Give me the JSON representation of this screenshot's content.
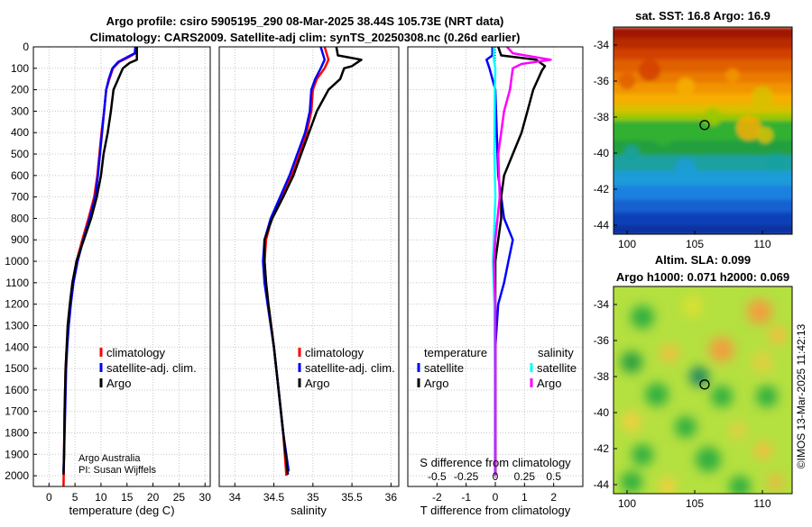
{
  "header": {
    "title_line1": "Argo profile: csiro 5905195_290 08-Mar-2025 38.44S 105.73E (NRT data)",
    "title_line2": "Climatology: CARS2009. Satellite-adj clim: synTS_20250308.nc (0.26d earlier)"
  },
  "colors": {
    "red": "#ff0000",
    "blue": "#0000ff",
    "black": "#000000",
    "cyan": "#00ffff",
    "magenta": "#ff00ff"
  },
  "chart_data": [
    {
      "type": "line",
      "id": "temperature",
      "xlabel": "temperature (deg C)",
      "ylabel": "",
      "xlim": [
        -3,
        31
      ],
      "ylim": [
        2050,
        0
      ],
      "xticks": [
        0,
        5,
        10,
        15,
        20,
        25,
        30
      ],
      "yticks": [
        0,
        100,
        200,
        300,
        400,
        500,
        600,
        700,
        800,
        900,
        1000,
        1100,
        1200,
        1300,
        1400,
        1500,
        1600,
        1700,
        1800,
        1900,
        2000
      ],
      "legend": [
        "climatology",
        "satellite-adj. clim.",
        "Argo"
      ],
      "annotation": [
        "Argo Australia",
        "PI: Susan Wijffels"
      ],
      "series": [
        {
          "name": "climatology",
          "color": "red",
          "points": [
            [
              16.8,
              0
            ],
            [
              16.6,
              30
            ],
            [
              15.2,
              50
            ],
            [
              13.5,
              70
            ],
            [
              12.3,
              100
            ],
            [
              11.6,
              150
            ],
            [
              11.0,
              200
            ],
            [
              10.6,
              300
            ],
            [
              10.1,
              400
            ],
            [
              9.7,
              500
            ],
            [
              9.3,
              600
            ],
            [
              8.7,
              700
            ],
            [
              7.6,
              800
            ],
            [
              6.4,
              900
            ],
            [
              5.3,
              1000
            ],
            [
              4.6,
              1100
            ],
            [
              4.1,
              1200
            ],
            [
              3.7,
              1300
            ],
            [
              3.4,
              1400
            ],
            [
              3.2,
              1500
            ],
            [
              3.0,
              1700
            ],
            [
              2.9,
              1900
            ],
            [
              2.8,
              2050
            ]
          ]
        },
        {
          "name": "satellite-adj. clim.",
          "color": "blue",
          "points": [
            [
              16.6,
              0
            ],
            [
              16.5,
              30
            ],
            [
              14.9,
              50
            ],
            [
              13.3,
              70
            ],
            [
              12.2,
              100
            ],
            [
              11.5,
              150
            ],
            [
              11.0,
              200
            ],
            [
              10.6,
              300
            ],
            [
              10.2,
              400
            ],
            [
              9.8,
              500
            ],
            [
              9.4,
              600
            ],
            [
              8.9,
              700
            ],
            [
              7.8,
              800
            ],
            [
              6.6,
              900
            ],
            [
              5.5,
              1000
            ],
            [
              4.7,
              1100
            ],
            [
              4.2,
              1200
            ],
            [
              3.8,
              1300
            ],
            [
              3.5,
              1400
            ],
            [
              3.3,
              1500
            ],
            [
              3.1,
              1700
            ],
            [
              2.9,
              1900
            ],
            [
              2.8,
              1980
            ]
          ]
        },
        {
          "name": "Argo",
          "color": "black",
          "points": [
            [
              16.9,
              0
            ],
            [
              16.9,
              60
            ],
            [
              15.5,
              75
            ],
            [
              14.2,
              100
            ],
            [
              13.3,
              150
            ],
            [
              12.4,
              200
            ],
            [
              11.9,
              300
            ],
            [
              11.3,
              400
            ],
            [
              10.5,
              500
            ],
            [
              10.0,
              600
            ],
            [
              9.2,
              700
            ],
            [
              8.1,
              800
            ],
            [
              6.7,
              900
            ],
            [
              5.3,
              1000
            ],
            [
              4.5,
              1100
            ],
            [
              4.0,
              1200
            ],
            [
              3.6,
              1300
            ],
            [
              3.4,
              1400
            ],
            [
              3.2,
              1500
            ],
            [
              3.0,
              1700
            ],
            [
              2.9,
              1900
            ],
            [
              2.8,
              1995
            ]
          ]
        }
      ]
    },
    {
      "type": "line",
      "id": "salinity",
      "xlabel": "salinity",
      "ylabel": "",
      "xlim": [
        33.8,
        36.1
      ],
      "xticks": [
        34,
        34.5,
        35,
        35.5,
        36
      ],
      "legend": [
        "climatology",
        "satellite-adj. clim.",
        "Argo"
      ],
      "series": [
        {
          "name": "climatology",
          "color": "red",
          "points": [
            [
              35.15,
              0
            ],
            [
              35.2,
              60
            ],
            [
              35.15,
              100
            ],
            [
              35.05,
              150
            ],
            [
              35.0,
              200
            ],
            [
              34.98,
              300
            ],
            [
              34.92,
              400
            ],
            [
              34.83,
              500
            ],
            [
              34.73,
              600
            ],
            [
              34.6,
              700
            ],
            [
              34.47,
              800
            ],
            [
              34.4,
              900
            ],
            [
              34.38,
              1000
            ],
            [
              34.4,
              1100
            ],
            [
              34.43,
              1200
            ],
            [
              34.5,
              1400
            ],
            [
              34.56,
              1600
            ],
            [
              34.62,
              1800
            ],
            [
              34.66,
              2000
            ]
          ]
        },
        {
          "name": "satellite-adj. clim.",
          "color": "blue",
          "points": [
            [
              35.1,
              0
            ],
            [
              35.15,
              60
            ],
            [
              35.1,
              100
            ],
            [
              35.03,
              150
            ],
            [
              34.98,
              200
            ],
            [
              34.96,
              300
            ],
            [
              34.9,
              400
            ],
            [
              34.8,
              500
            ],
            [
              34.7,
              600
            ],
            [
              34.58,
              700
            ],
            [
              34.46,
              800
            ],
            [
              34.38,
              900
            ],
            [
              34.36,
              1000
            ],
            [
              34.38,
              1100
            ],
            [
              34.42,
              1200
            ],
            [
              34.5,
              1400
            ],
            [
              34.56,
              1600
            ],
            [
              34.62,
              1800
            ],
            [
              34.69,
              1980
            ]
          ]
        },
        {
          "name": "Argo",
          "color": "black",
          "points": [
            [
              35.3,
              0
            ],
            [
              35.32,
              40
            ],
            [
              35.62,
              60
            ],
            [
              35.5,
              90
            ],
            [
              35.4,
              100
            ],
            [
              35.35,
              150
            ],
            [
              35.2,
              200
            ],
            [
              35.05,
              300
            ],
            [
              34.95,
              400
            ],
            [
              34.85,
              500
            ],
            [
              34.75,
              600
            ],
            [
              34.62,
              700
            ],
            [
              34.48,
              800
            ],
            [
              34.38,
              900
            ],
            [
              34.38,
              1000
            ],
            [
              34.4,
              1100
            ],
            [
              34.43,
              1200
            ],
            [
              34.5,
              1400
            ],
            [
              34.56,
              1600
            ],
            [
              34.62,
              1800
            ],
            [
              34.68,
              1995
            ]
          ]
        }
      ]
    },
    {
      "type": "line",
      "id": "differences",
      "xlabel": "T difference from climatology",
      "xlabel_top": "S difference from climatology",
      "xlim": [
        -3,
        3
      ],
      "xticks": [
        -2,
        -1,
        0,
        1,
        2
      ],
      "xticks_top": [
        -0.5,
        -0.25,
        0,
        0.25,
        0.5
      ],
      "legend_left_title": "temperature",
      "legend_left": [
        "satellite",
        "Argo"
      ],
      "legend_right_title": "salinity",
      "legend_right": [
        "satellite",
        "Argo"
      ],
      "series": [
        {
          "name": "temperature satellite",
          "color": "blue",
          "points": [
            [
              -0.1,
              0
            ],
            [
              -0.1,
              40
            ],
            [
              -0.3,
              60
            ],
            [
              -0.2,
              100
            ],
            [
              0,
              200
            ],
            [
              0.05,
              400
            ],
            [
              0.1,
              600
            ],
            [
              0.2,
              700
            ],
            [
              0.3,
              800
            ],
            [
              0.6,
              900
            ],
            [
              0.45,
              1000
            ],
            [
              0.3,
              1100
            ],
            [
              0.1,
              1200
            ],
            [
              0,
              1400
            ],
            [
              0,
              1990
            ]
          ]
        },
        {
          "name": "temperature Argo",
          "color": "black",
          "points": [
            [
              0.1,
              0
            ],
            [
              0.2,
              40
            ],
            [
              1.4,
              60
            ],
            [
              1.7,
              90
            ],
            [
              1.6,
              110
            ],
            [
              1.3,
              200
            ],
            [
              1.1,
              300
            ],
            [
              0.9,
              400
            ],
            [
              0.6,
              500
            ],
            [
              0.3,
              600
            ],
            [
              0.2,
              700
            ],
            [
              0.2,
              800
            ],
            [
              0.1,
              900
            ],
            [
              0,
              1000
            ],
            [
              0,
              1995
            ]
          ]
        },
        {
          "name": "salinity satellite",
          "color": "cyan",
          "points": [
            [
              -0.05,
              0
            ],
            [
              -0.05,
              60
            ],
            [
              0,
              100
            ],
            [
              -0.02,
              200
            ],
            [
              -0.03,
              500
            ],
            [
              0,
              700
            ],
            [
              -0.05,
              900
            ],
            [
              -0.08,
              1000
            ],
            [
              -0.03,
              1200
            ],
            [
              -0.02,
              1500
            ],
            [
              -0.02,
              2000
            ]
          ]
        },
        {
          "name": "salinity Argo",
          "color": "magenta",
          "points": [
            [
              0.4,
              0
            ],
            [
              0.6,
              30
            ],
            [
              1.9,
              60
            ],
            [
              0.9,
              80
            ],
            [
              0.6,
              100
            ],
            [
              0.5,
              200
            ],
            [
              0.3,
              300
            ],
            [
              0.2,
              400
            ],
            [
              0.1,
              500
            ],
            [
              0.15,
              700
            ],
            [
              0,
              900
            ],
            [
              -0.05,
              1000
            ],
            [
              0,
              1200
            ],
            [
              0,
              2000
            ]
          ]
        }
      ]
    },
    {
      "type": "heatmap",
      "id": "sst",
      "title": "sat. SST: 16.8 Argo: 16.9",
      "xlim": [
        99,
        112.2
      ],
      "ylim": [
        -44.5,
        -33
      ],
      "xticks": [
        100,
        105,
        110
      ],
      "yticks": [
        -34,
        -36,
        -38,
        -40,
        -42,
        -44
      ],
      "marker": [
        105.73,
        -38.44
      ]
    },
    {
      "type": "heatmap",
      "id": "sla",
      "title_line1": "Altim. SLA: 0.099",
      "title_line2": "Argo h1000: 0.071 h2000: 0.069",
      "xlim": [
        99,
        112.2
      ],
      "ylim": [
        -44.5,
        -33
      ],
      "xticks": [
        100,
        105,
        110
      ],
      "yticks": [
        -34,
        -36,
        -38,
        -40,
        -42,
        -44
      ],
      "marker": [
        105.73,
        -38.44
      ]
    }
  ],
  "credit": "©IMOS 13-Mar-2025 11:42:13"
}
